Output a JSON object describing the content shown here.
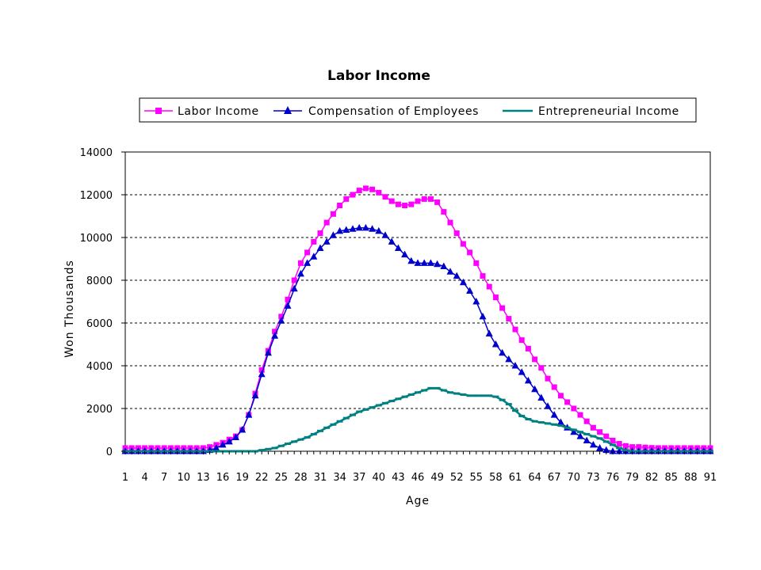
{
  "chart_data": {
    "type": "line",
    "title": "Labor Income",
    "xlabel": "Age",
    "ylabel": "Won Thousands",
    "ylim": [
      0,
      14000
    ],
    "yticks": [
      0,
      2000,
      4000,
      6000,
      8000,
      10000,
      12000,
      14000
    ],
    "xlim": [
      1,
      91
    ],
    "xtick_labels": [
      "1",
      "4",
      "7",
      "10",
      "13",
      "16",
      "19",
      "22",
      "25",
      "28",
      "31",
      "34",
      "37",
      "40",
      "43",
      "46",
      "49",
      "52",
      "55",
      "58",
      "61",
      "64",
      "67",
      "70",
      "73",
      "76",
      "79",
      "82",
      "85",
      "88",
      "91"
    ],
    "grid": "horizontal-dashed",
    "legend_position": "top",
    "series": [
      {
        "name": "Labor Income",
        "color": "#ff00ff",
        "marker": "square",
        "values": [
          150,
          150,
          150,
          150,
          150,
          150,
          150,
          150,
          150,
          150,
          150,
          150,
          150,
          200,
          300,
          400,
          550,
          700,
          1000,
          1700,
          2700,
          3800,
          4700,
          5600,
          6300,
          7100,
          8000,
          8800,
          9300,
          9800,
          10200,
          10700,
          11100,
          11500,
          11800,
          12000,
          12200,
          12300,
          12250,
          12100,
          11900,
          11700,
          11550,
          11500,
          11550,
          11700,
          11800,
          11800,
          11650,
          11200,
          10700,
          10200,
          9700,
          9300,
          8800,
          8200,
          7700,
          7200,
          6700,
          6200,
          5700,
          5200,
          4800,
          4300,
          3900,
          3400,
          3000,
          2600,
          2300,
          2000,
          1700,
          1400,
          1100,
          900,
          700,
          500,
          350,
          250,
          200,
          200,
          180,
          160,
          150,
          150,
          150,
          150,
          150,
          150,
          150,
          150,
          150
        ]
      },
      {
        "name": "Compensation of Employees",
        "color": "#0000cc",
        "marker": "triangle",
        "values": [
          0,
          0,
          0,
          0,
          0,
          0,
          0,
          0,
          0,
          0,
          0,
          0,
          0,
          50,
          150,
          300,
          450,
          650,
          1000,
          1700,
          2600,
          3600,
          4600,
          5400,
          6100,
          6800,
          7600,
          8300,
          8800,
          9100,
          9500,
          9800,
          10100,
          10300,
          10350,
          10400,
          10450,
          10450,
          10400,
          10300,
          10100,
          9800,
          9500,
          9200,
          8900,
          8800,
          8800,
          8800,
          8750,
          8650,
          8400,
          8200,
          7900,
          7500,
          7000,
          6300,
          5500,
          5000,
          4600,
          4300,
          4000,
          3700,
          3300,
          2900,
          2500,
          2100,
          1700,
          1350,
          1100,
          900,
          700,
          500,
          300,
          150,
          50,
          0,
          0,
          0,
          0,
          0,
          0,
          0,
          0,
          0,
          0,
          0,
          0,
          0,
          0,
          0,
          0
        ]
      },
      {
        "name": "Entrepreneurial Income",
        "color": "#008080",
        "marker": "dash",
        "values": [
          0,
          0,
          0,
          0,
          0,
          0,
          0,
          0,
          0,
          0,
          0,
          0,
          0,
          0,
          0,
          0,
          0,
          0,
          0,
          0,
          0,
          50,
          100,
          150,
          250,
          350,
          450,
          550,
          650,
          800,
          950,
          1100,
          1250,
          1400,
          1550,
          1700,
          1850,
          1950,
          2050,
          2150,
          2250,
          2350,
          2450,
          2550,
          2650,
          2750,
          2850,
          2950,
          2950,
          2850,
          2750,
          2700,
          2650,
          2600,
          2600,
          2600,
          2600,
          2550,
          2400,
          2200,
          1900,
          1650,
          1500,
          1400,
          1350,
          1300,
          1250,
          1200,
          1100,
          1000,
          900,
          800,
          700,
          600,
          450,
          300,
          150,
          50,
          0,
          0,
          0,
          0,
          0,
          0,
          0,
          0,
          0,
          0,
          0,
          0,
          0
        ]
      }
    ]
  }
}
